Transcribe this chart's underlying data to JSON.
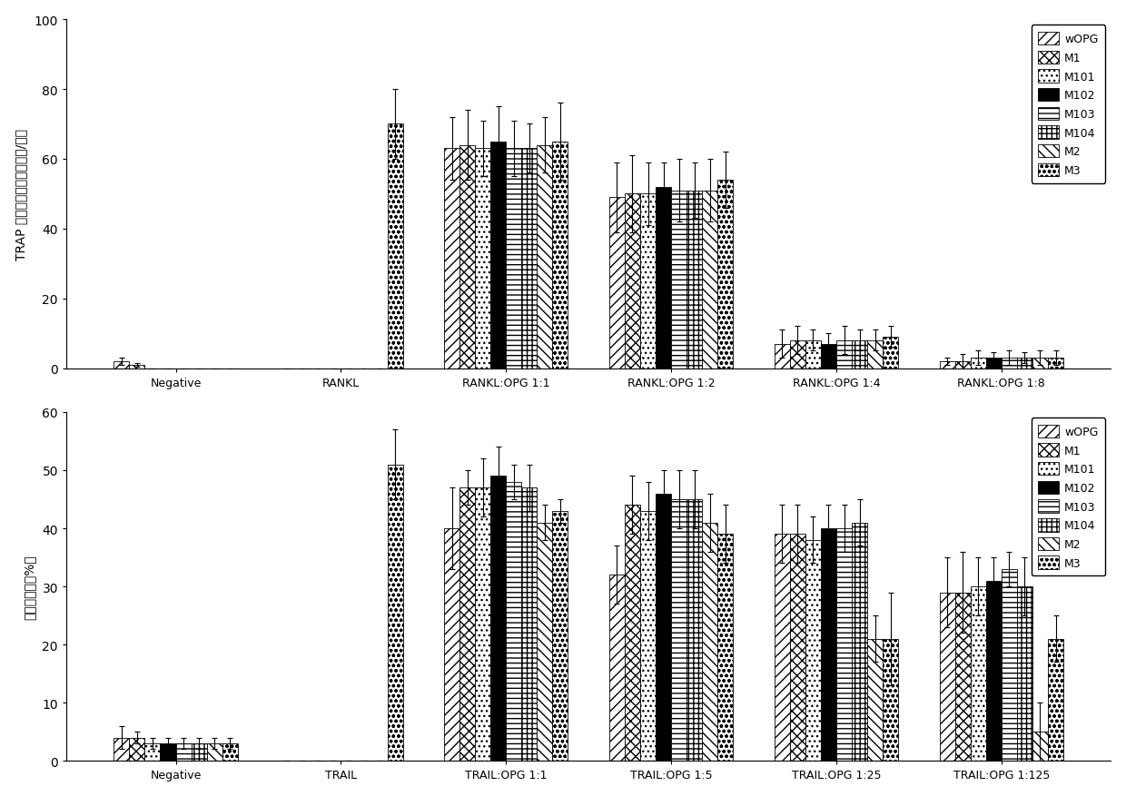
{
  "top_chart": {
    "ylabel": "TRAP 阳性多核细胞数目（个/孔）",
    "ylim": [
      0,
      100
    ],
    "yticks": [
      0,
      20,
      40,
      60,
      80,
      100
    ],
    "groups": [
      "Negative",
      "RANKL",
      "RANKL:OPG 1:1",
      "RANKL:OPG 1:2",
      "RANKL:OPG 1:4",
      "RANKL:OPG 1:8"
    ],
    "values": [
      [
        2,
        0,
        63,
        49,
        7,
        2
      ],
      [
        1,
        0,
        64,
        50,
        8,
        2
      ],
      [
        0,
        0,
        63,
        50,
        8,
        3
      ],
      [
        0,
        0,
        65,
        52,
        7,
        3
      ],
      [
        0,
        0,
        63,
        51,
        8,
        3
      ],
      [
        0,
        0,
        63,
        51,
        8,
        3
      ],
      [
        0,
        0,
        64,
        51,
        8,
        3
      ],
      [
        0,
        70,
        65,
        54,
        9,
        3
      ]
    ],
    "errors": [
      [
        1,
        0,
        9,
        10,
        4,
        1
      ],
      [
        0.5,
        0,
        10,
        11,
        4,
        2
      ],
      [
        0,
        0,
        8,
        9,
        3,
        2
      ],
      [
        0,
        0,
        10,
        7,
        3,
        1.5
      ],
      [
        0,
        0,
        8,
        9,
        4,
        2
      ],
      [
        0,
        0,
        7,
        8,
        3,
        1.5
      ],
      [
        0,
        0,
        8,
        9,
        3,
        2
      ],
      [
        0,
        10,
        11,
        8,
        3,
        2
      ]
    ]
  },
  "bottom_chart": {
    "ylabel": "细胞凋亡率（%）",
    "ylim": [
      0,
      60
    ],
    "yticks": [
      0,
      10,
      20,
      30,
      40,
      50,
      60
    ],
    "groups": [
      "Negative",
      "TRAIL",
      "TRAIL:OPG 1:1",
      "TRAIL:OPG 1:5",
      "TRAIL:OPG 1:25",
      "TRAIL:OPG 1:125"
    ],
    "values": [
      [
        4,
        0,
        40,
        32,
        39,
        29
      ],
      [
        4,
        0,
        47,
        44,
        39,
        29
      ],
      [
        3,
        0,
        47,
        43,
        38,
        30
      ],
      [
        3,
        0,
        49,
        46,
        40,
        31
      ],
      [
        3,
        0,
        48,
        45,
        40,
        33
      ],
      [
        3,
        0,
        47,
        45,
        41,
        30
      ],
      [
        3,
        0,
        41,
        41,
        21,
        5
      ],
      [
        3,
        51,
        43,
        39,
        21,
        21
      ]
    ],
    "errors": [
      [
        2,
        0,
        7,
        5,
        5,
        6
      ],
      [
        1,
        0,
        3,
        5,
        5,
        7
      ],
      [
        1,
        0,
        5,
        5,
        4,
        5
      ],
      [
        1,
        0,
        5,
        4,
        4,
        4
      ],
      [
        1,
        0,
        3,
        5,
        4,
        3
      ],
      [
        1,
        0,
        4,
        5,
        4,
        5
      ],
      [
        1,
        0,
        3,
        5,
        4,
        5
      ],
      [
        1,
        6,
        2,
        5,
        8,
        4
      ]
    ]
  },
  "series": [
    "wOPG",
    "M1",
    "M101",
    "M102",
    "M103",
    "M104",
    "M2",
    "M3"
  ],
  "face_colors": [
    "white",
    "white",
    "white",
    "black",
    "white",
    "white",
    "white",
    "white"
  ],
  "hatch_patterns": [
    "\\/\\/\\/",
    "xx",
    "..",
    "",
    "--",
    "++",
    "\\\\\\\\",
    "~~"
  ]
}
